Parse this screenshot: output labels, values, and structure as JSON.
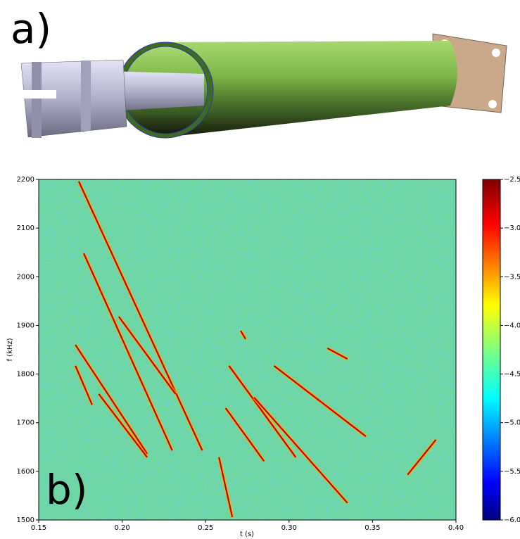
{
  "panel_labels": [
    "a)",
    "b)"
  ],
  "chart_data": {
    "type": "spectrogram",
    "xlabel": "t (s)",
    "ylabel": "f (kHz)",
    "xlim": [
      0.15,
      0.4
    ],
    "xticks": [
      0.15,
      {
        "value": 0.2,
        "label": "0.20"
      },
      0.25,
      {
        "value": 0.3,
        "label": "0.30"
      },
      0.35,
      {
        "value": 0.4,
        "label": "0.40"
      }
    ],
    "ylim": [
      1500,
      2200
    ],
    "yticks": [
      1500,
      1600,
      1700,
      1800,
      1900,
      2000,
      2100,
      2200
    ],
    "color": "#c40000",
    "series": [
      {
        "x": [
          0.174,
          0.248
        ],
        "values": [
          2196,
          1643
        ]
      },
      {
        "x": [
          0.177,
          0.23
        ],
        "values": [
          2048,
          1643
        ]
      },
      {
        "x": [
          0.172,
          0.215
        ],
        "values": [
          1860,
          1636
        ]
      },
      {
        "x": [
          0.172,
          0.182
        ],
        "values": [
          1817,
          1737
        ]
      },
      {
        "x": [
          0.186,
          0.215
        ],
        "values": [
          1759,
          1629
        ]
      },
      {
        "x": [
          0.198,
          0.232
        ],
        "values": [
          1918,
          1759
        ]
      },
      {
        "x": [
          0.264,
          0.304
        ],
        "values": [
          1817,
          1629
        ]
      },
      {
        "x": [
          0.262,
          0.285
        ],
        "values": [
          1730,
          1621
        ]
      },
      {
        "x": [
          0.279,
          0.335
        ],
        "values": [
          1752,
          1535
        ]
      },
      {
        "x": [
          0.291,
          0.346
        ],
        "values": [
          1817,
          1672
        ]
      },
      {
        "x": [
          0.323,
          0.335
        ],
        "values": [
          1853,
          1831
        ]
      },
      {
        "x": [
          0.371,
          0.388
        ],
        "values": [
          1593,
          1665
        ]
      },
      {
        "x": [
          0.258,
          0.266
        ],
        "values": [
          1629,
          1506
        ]
      },
      {
        "x": [
          0.271,
          0.274
        ],
        "values": [
          1889,
          1872
        ]
      }
    ],
    "colorbar": {
      "colormap": "jet",
      "lim": [
        -6.0,
        -2.5
      ],
      "ticks": [
        {
          "value": -2.5,
          "label": "−2.5"
        },
        {
          "value": -3.0,
          "label": "−3.0"
        },
        {
          "value": -3.5,
          "label": "−3.5"
        },
        {
          "value": -4.0,
          "label": "−4.0"
        },
        {
          "value": -4.5,
          "label": "−4.5"
        },
        {
          "value": -5.0,
          "label": "−5.0"
        },
        {
          "value": -5.5,
          "label": "−5.5"
        },
        {
          "value": -6.0,
          "label": "−6.0"
        }
      ]
    }
  }
}
